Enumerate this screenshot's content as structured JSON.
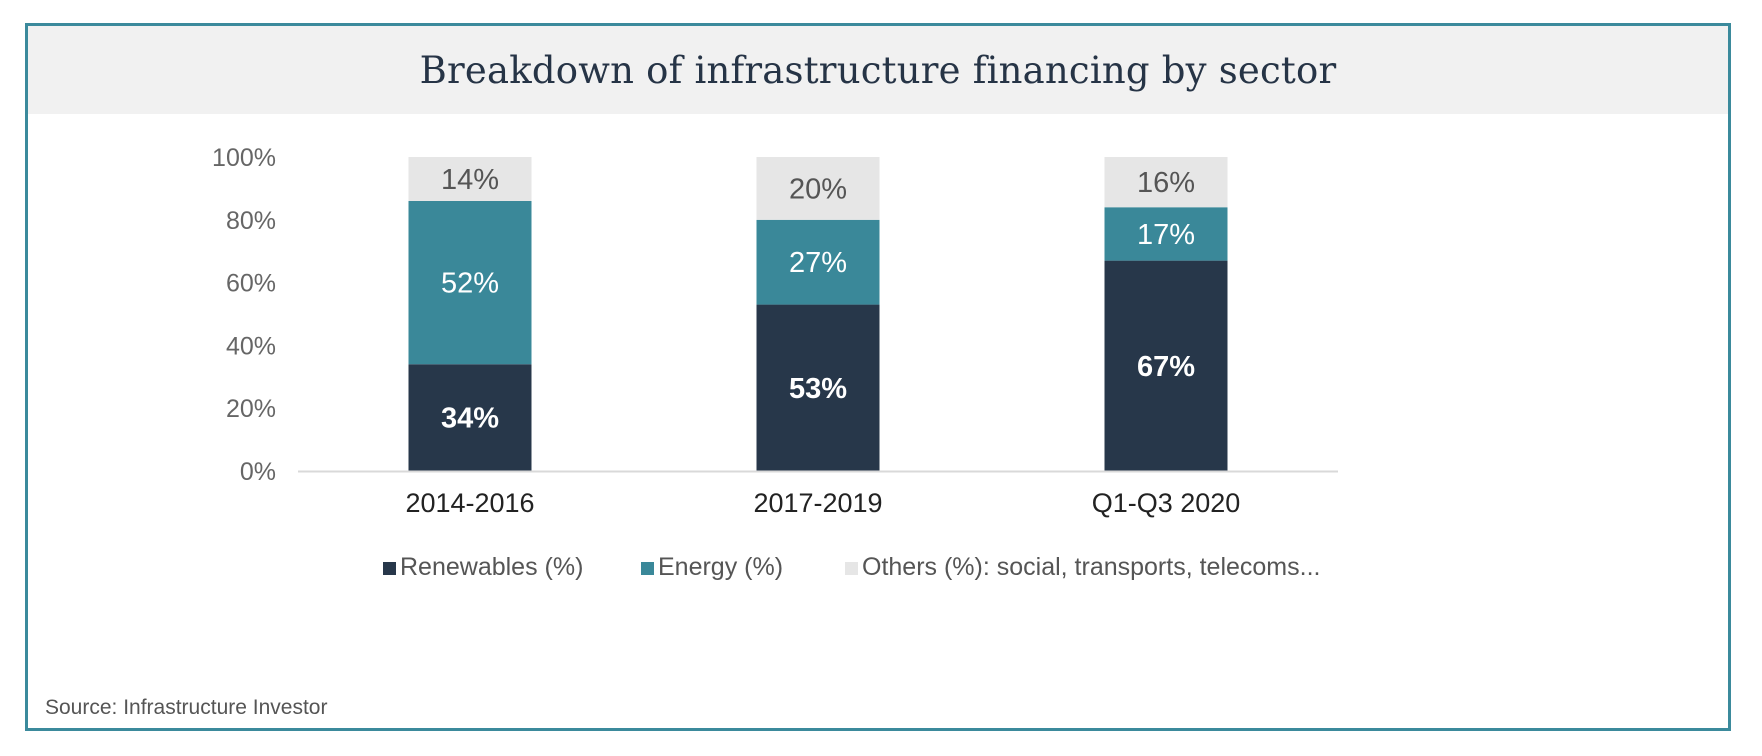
{
  "title": "Breakdown of infrastructure financing by sector",
  "source": "Source: Infrastructure Investor",
  "chart_data": {
    "type": "bar",
    "stacked": true,
    "title": "Breakdown of infrastructure financing by sector",
    "categories": [
      "2014-2016",
      "2017-2019",
      "Q1-Q3 2020"
    ],
    "series": [
      {
        "name": "Renewables (%)",
        "values": [
          34,
          53,
          67
        ],
        "labels": [
          "34%",
          "53%",
          "67%"
        ],
        "color": "#27374a",
        "label_color": "#ffffff",
        "label_bold": true
      },
      {
        "name": "Energy (%)",
        "values": [
          52,
          27,
          17
        ],
        "labels": [
          "52%",
          "27%",
          "17%"
        ],
        "color": "#3a8899",
        "label_color": "#ffffff",
        "label_bold": false
      },
      {
        "name": "Others (%): social, transports, telecoms...",
        "values": [
          14,
          20,
          16
        ],
        "labels": [
          "14%",
          "20%",
          "16%"
        ],
        "color": "#e6e6e6",
        "label_color": "#555555",
        "label_bold": false
      }
    ],
    "yticks": [
      "0%",
      "20%",
      "40%",
      "60%",
      "80%",
      "100%"
    ],
    "ylim": [
      0,
      100
    ],
    "grid": false,
    "legend_position": "bottom",
    "axis_color": "#d9d9d9",
    "frame_color": "#3b8a9c"
  }
}
